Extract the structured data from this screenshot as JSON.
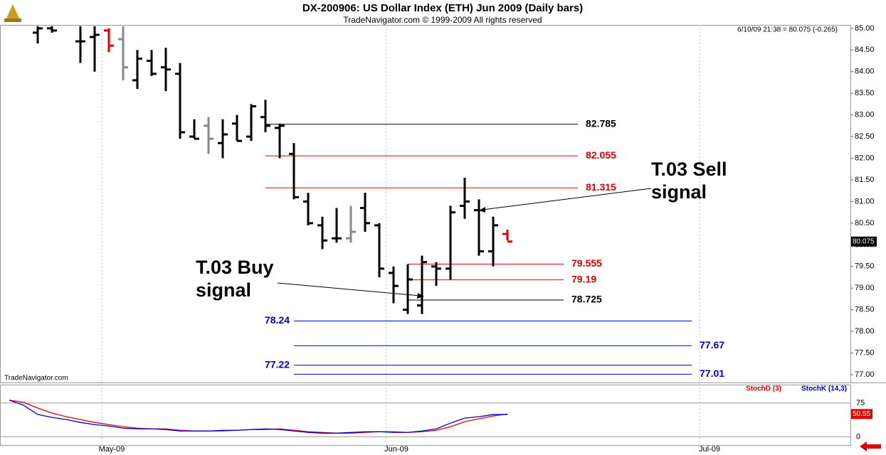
{
  "header": {
    "title": "DX-200906:  US Dollar Index (ETH) Jun 2009  (Daily bars)",
    "subtitle": "TradeNavigator.com © 1999-2009 All rights reserved",
    "info": "6/10/09 21:38 = 80.075 (-0.265)",
    "watermark": "TradeNavigator.com"
  },
  "chart_data": [
    {
      "type": "ohlc",
      "categories": [
        null,
        null,
        null,
        null,
        null,
        null,
        null,
        "May-09",
        null,
        null,
        null,
        null,
        null,
        null,
        null,
        null,
        null,
        null,
        null,
        null,
        null,
        null,
        null,
        null,
        null,
        null,
        null,
        "Jun-09",
        null,
        null,
        null,
        null,
        null,
        null,
        null,
        null,
        null,
        null,
        null,
        null,
        null,
        null,
        null,
        null,
        null,
        null,
        null,
        null,
        null,
        "Jul-09",
        null,
        null
      ],
      "open": [
        null,
        null,
        84.9,
        85.0,
        null,
        84.7,
        84.8,
        84.95,
        84.75,
        83.8,
        84.25,
        84.1,
        83.95,
        82.5,
        82.75,
        82.35,
        82.8,
        82.5,
        82.95,
        82.7,
        82.1,
        81.0,
        80.45,
        80.15,
        80.15,
        80.85,
        80.45,
        79.35,
        78.5,
        78.6,
        79.5,
        79.45,
        80.9,
        80.8,
        79.85,
        80.25,
        null,
        null,
        null,
        null,
        null,
        null,
        null,
        null,
        null,
        null,
        null,
        null,
        null,
        null,
        null,
        null
      ],
      "high": [
        null,
        null,
        85.05,
        85.05,
        null,
        85.05,
        85.05,
        85.0,
        85.05,
        84.5,
        84.5,
        84.55,
        84.2,
        82.9,
        82.95,
        82.9,
        83.0,
        83.25,
        83.35,
        82.8,
        82.35,
        81.2,
        80.65,
        80.85,
        80.9,
        81.2,
        80.5,
        79.5,
        79.55,
        79.75,
        79.6,
        80.9,
        81.55,
        81.05,
        80.65,
        80.35,
        null,
        null,
        null,
        null,
        null,
        null,
        null,
        null,
        null,
        null,
        null,
        null,
        null,
        null,
        null,
        null
      ],
      "low": [
        null,
        null,
        84.65,
        84.9,
        null,
        84.2,
        84.0,
        84.45,
        83.8,
        83.6,
        83.9,
        83.55,
        82.45,
        82.45,
        82.1,
        82.0,
        82.4,
        82.4,
        82.6,
        82.0,
        81.05,
        80.45,
        79.9,
        80.05,
        80.05,
        80.3,
        79.25,
        78.65,
        78.4,
        78.4,
        79.05,
        79.2,
        80.6,
        79.75,
        79.5,
        80.1,
        null,
        null,
        null,
        null,
        null,
        null,
        null,
        null,
        null,
        null,
        null,
        null,
        null,
        null,
        null,
        null
      ],
      "close": [
        null,
        null,
        85.0,
        84.95,
        null,
        84.7,
        84.85,
        84.6,
        84.1,
        84.3,
        83.95,
        84.05,
        82.6,
        82.45,
        82.45,
        82.55,
        82.4,
        83.2,
        82.75,
        82.75,
        81.1,
        80.5,
        80.1,
        80.15,
        80.3,
        80.5,
        79.45,
        79.05,
        79.2,
        79.6,
        79.45,
        80.75,
        81.0,
        79.85,
        80.45,
        80.075,
        null,
        null,
        null,
        null,
        null,
        null,
        null,
        null,
        null,
        null,
        null,
        null,
        null,
        null,
        null,
        null
      ],
      "bar_colors": [
        null,
        null,
        "#000000",
        "#000000",
        null,
        "#000000",
        "#000000",
        "#e00000",
        "#888888",
        "#000000",
        "#000000",
        "#000000",
        "#000000",
        "#000000",
        "#888888",
        "#000000",
        "#000000",
        "#000000",
        "#000000",
        "#000000",
        "#000000",
        "#000000",
        "#000000",
        "#000000",
        "#888888",
        "#000000",
        "#000000",
        "#000000",
        "#000000",
        "#000000",
        "#000000",
        "#000000",
        "#000000",
        "#000000",
        "#000000",
        "#e00000",
        null,
        null,
        null,
        null,
        null,
        null,
        null,
        null,
        null,
        null,
        null,
        null,
        null,
        null,
        null,
        null
      ],
      "last_price": 80.075,
      "ylim": [
        76.82,
        85.08
      ],
      "yticks": [
        {
          "value": 77,
          "label": "77.00"
        },
        {
          "value": 77.5,
          "label": "77.50"
        },
        {
          "value": 78,
          "label": "78.00"
        },
        {
          "value": 78.5,
          "label": "78.50"
        },
        {
          "value": 79,
          "label": "79.00"
        },
        {
          "value": 79.5,
          "label": "79.50"
        },
        {
          "value": 80,
          "label": "80.00"
        },
        {
          "value": 80.5,
          "label": "80.50"
        },
        {
          "value": 81,
          "label": "81.00"
        },
        {
          "value": 81.5,
          "label": "81.50"
        },
        {
          "value": 82,
          "label": "82.00"
        },
        {
          "value": 82.5,
          "label": "82.50"
        },
        {
          "value": 83,
          "label": "83.00"
        },
        {
          "value": 83.5,
          "label": "83.50"
        },
        {
          "value": 84,
          "label": "84.00"
        },
        {
          "value": 84.5,
          "label": "84.50"
        },
        {
          "value": 85,
          "label": "85.00"
        }
      ],
      "levels": [
        {
          "value": 82.785,
          "color": "#000000"
        },
        {
          "value": 82.055,
          "color": "#e00000"
        },
        {
          "value": 81.315,
          "color": "#e00000"
        },
        {
          "value": 79.555,
          "color": "#e00000"
        },
        {
          "value": 79.19,
          "color": "#e00000"
        },
        {
          "value": 78.725,
          "color": "#000000"
        },
        {
          "value": 78.24,
          "color": "#0000cc"
        },
        {
          "value": 77.67,
          "color": "#0000cc"
        },
        {
          "value": 77.22,
          "color": "#0000cc"
        },
        {
          "value": 77.01,
          "color": "#0000cc"
        }
      ],
      "annotations": [
        {
          "lines": [
            "T.03 Sell",
            "signal"
          ]
        },
        {
          "lines": [
            "T.03 Buy",
            "signal"
          ]
        }
      ]
    },
    {
      "type": "line",
      "ylim": [
        -20,
        116
      ],
      "yticks": [
        0,
        75
      ],
      "series": [
        {
          "name": "StochD (3)",
          "color": "#e00000",
          "values": [
            81.4,
            76.6,
            63.8,
            52.7,
            44.7,
            38.3,
            31.9,
            27.1,
            22.3,
            19.2,
            17.6,
            17.6,
            14.4,
            12.8,
            12.8,
            12.8,
            14.4,
            16.0,
            16.0,
            17.6,
            14.4,
            11.2,
            9.6,
            8.0,
            8.0,
            9.6,
            11.2,
            11.2,
            9.6,
            11.2,
            14.4,
            22.3,
            33.5,
            39.9,
            46.3,
            50.55
          ]
        },
        {
          "name": "StochK (14,3)",
          "color": "#0000cc",
          "values": [
            81.4,
            70.2,
            49.5,
            43.1,
            38.3,
            31.9,
            27.1,
            23.9,
            19.2,
            17.6,
            17.6,
            16.0,
            12.8,
            12.8,
            12.8,
            14.4,
            14.4,
            16.0,
            17.6,
            16.0,
            12.8,
            9.6,
            8.0,
            8.0,
            9.6,
            11.2,
            11.2,
            9.6,
            9.6,
            12.8,
            17.6,
            30.3,
            41.5,
            44.7,
            49.5,
            49.5
          ]
        }
      ]
    }
  ]
}
